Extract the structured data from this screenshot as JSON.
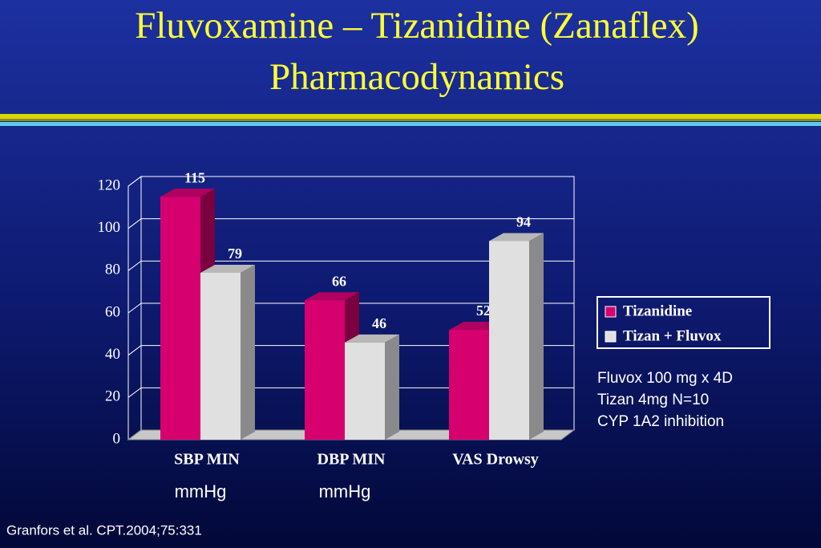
{
  "chart_data": {
    "type": "bar3d",
    "title": [
      "Fluvoxamine – Tizanidine (Zanaflex)",
      "Pharmacodynamics"
    ],
    "categories": [
      "SBP MIN",
      "DBP MIN",
      "VAS Drowsy"
    ],
    "category_units": [
      "mmHg",
      "mmHg",
      null
    ],
    "series": [
      {
        "name": "Tizanidine",
        "color": "#d6006f",
        "values": [
          115,
          66,
          52
        ]
      },
      {
        "name": "Tizan + Fluvox",
        "color": "#e0e0e0",
        "values": [
          79,
          46,
          94
        ]
      }
    ],
    "ylim": [
      0,
      120
    ],
    "yticks": [
      0,
      20,
      40,
      60,
      80,
      100,
      120
    ],
    "grid": true,
    "legend": "right",
    "annotations": [
      "Fluvox 100 mg x 4D",
      "Tizan 4mg N=10",
      "CYP 1A2 inhibition"
    ],
    "source": "Granfors et al. CPT.2004;75:331"
  }
}
